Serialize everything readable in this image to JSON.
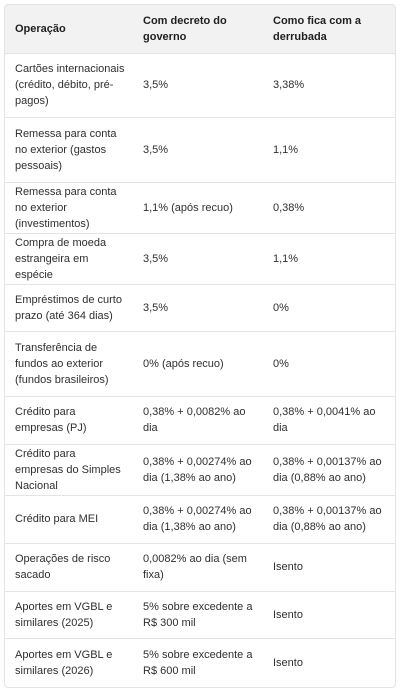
{
  "table": {
    "headers": [
      "Operação",
      "Com decreto do governo",
      "Como fica com a derrubada"
    ],
    "rows": [
      {
        "operacao": "Cartões internacionais (crédito, débito, pré-pagos)",
        "decreto": "3,5%",
        "derrubada": "3,38%"
      },
      {
        "operacao": "Remessa para conta no exterior (gastos pessoais)",
        "decreto": "3,5%",
        "derrubada": "1,1%"
      },
      {
        "operacao": "Remessa para conta no exterior (investimentos)",
        "decreto": "1,1% (após recuo)",
        "derrubada": "0,38%"
      },
      {
        "operacao": "Compra de moeda estrangeira em espécie",
        "decreto": "3,5%",
        "derrubada": "1,1%"
      },
      {
        "operacao": "Empréstimos de curto prazo (até 364 dias)",
        "decreto": "3,5%",
        "derrubada": "0%"
      },
      {
        "operacao": "Transferência de fundos ao exterior (fundos brasileiros)",
        "decreto": "0% (após recuo)",
        "derrubada": "0%"
      },
      {
        "operacao": "Crédito para empresas (PJ)",
        "decreto": "0,38% + 0,0082% ao dia",
        "derrubada": "0,38% + 0,0041% ao dia"
      },
      {
        "operacao": "Crédito para empresas do Simples Nacional",
        "decreto": "0,38% + 0,00274% ao dia (1,38% ao ano)",
        "derrubada": "0,38% + 0,00137% ao dia (0,88% ao ano)"
      },
      {
        "operacao": "Crédito para MEI",
        "decreto": "0,38% + 0,00274% ao dia (1,38% ao ano)",
        "derrubada": "0,38% + 0,00137% ao dia (0,88% ao ano)"
      },
      {
        "operacao": "Operações de risco sacado",
        "decreto": "0,0082% ao dia (sem fixa)",
        "derrubada": "Isento"
      },
      {
        "operacao": "Aportes em VGBL e similares (2025)",
        "decreto": "5% sobre excedente a R$ 300 mil",
        "derrubada": "Isento"
      },
      {
        "operacao": "Aportes em VGBL e similares (2026)",
        "decreto": "5% sobre excedente a R$ 600 mil",
        "derrubada": "Isento"
      }
    ]
  }
}
